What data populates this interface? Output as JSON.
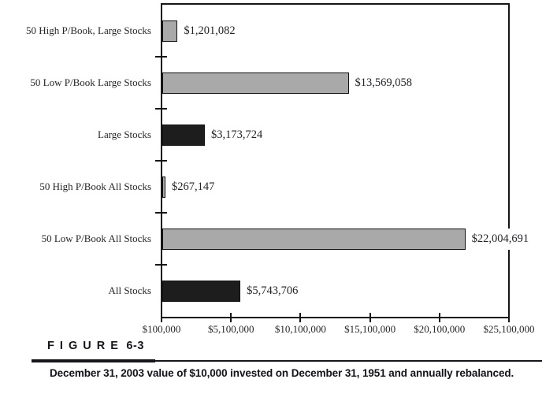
{
  "figure": {
    "label": "F I G U R E",
    "number": "6-3",
    "caption": "December 31, 2003 value of $10,000 invested on December 31, 1951 and annually rebalanced."
  },
  "chart_data": {
    "type": "bar",
    "orientation": "horizontal",
    "title": "",
    "xlabel": "",
    "ylabel": "",
    "grid": false,
    "legend": "none",
    "categories": [
      "50 High P/Book, Large Stocks",
      "50 Low P/Book Large Stocks",
      "Large Stocks",
      "50 High P/Book All Stocks",
      "50 Low P/Book All Stocks",
      "All Stocks"
    ],
    "values": [
      1201082,
      13569058,
      3173724,
      267147,
      22004691,
      5743706
    ],
    "value_labels": [
      "$1,201,082",
      "$13,569,058",
      "$3,173,724",
      "$267,147",
      "$22,004,691",
      "$5,743,706"
    ],
    "bar_colors": [
      "gray",
      "gray",
      "black",
      "gray",
      "gray",
      "black"
    ],
    "x_tick_labels": [
      "$100,000",
      "$5,100,000",
      "$10,100,000",
      "$15,100,000",
      "$20,100,000",
      "$25,100,000"
    ],
    "x_tick_values": [
      100000,
      5100000,
      10100000,
      15100000,
      20100000,
      25100000
    ],
    "xlim": [
      100000,
      25100000
    ],
    "colors": {
      "gray": "#a9a9a9",
      "black": "#1d1d1d",
      "bar_border": "#111111",
      "frame": "#161616",
      "text": "#26262b"
    }
  }
}
